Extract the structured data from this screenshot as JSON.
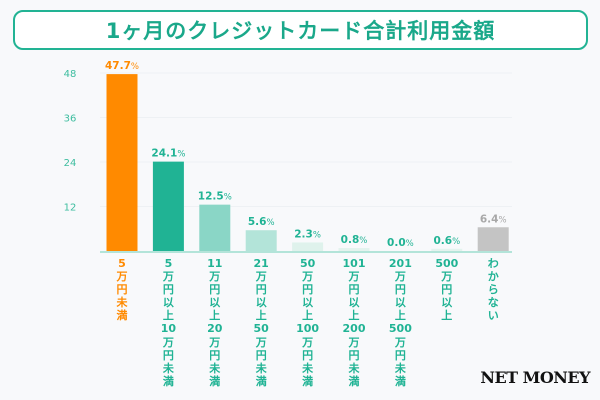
{
  "title": "1ヶ月のクレジットカード合計利用金額",
  "logo": "NET MONEY",
  "chart_data": {
    "type": "bar",
    "title": "1ヶ月のクレジットカード合計利用金額",
    "categories": [
      "5\n万\n円\n未\n満",
      "5\n万\n円\n以\n上\n10\n万\n円\n未\n満",
      "11\n万\n円\n以\n上\n20\n万\n円\n未\n満",
      "21\n万\n円\n以\n上\n50\n万\n円\n未\n満",
      "50\n万\n円\n以\n上\n100\n万\n円\n未\n満",
      "101\n万\n円\n以\n上\n200\n万\n円\n未\n満",
      "201\n万\n円\n以\n上\n500\n万\n円\n未\n満",
      "500\n万\n円\n以\n上",
      "わ\nか\nら\nな\nい"
    ],
    "values": [
      47.7,
      24.1,
      12.5,
      5.6,
      2.3,
      0.8,
      0.0,
      0.6,
      6.4
    ],
    "value_labels": [
      "47.7",
      "24.1",
      "12.5",
      "5.6",
      "2.3",
      "0.8",
      "0.0",
      "0.6",
      "6.4"
    ],
    "unit": "%",
    "ylim": [
      0,
      48
    ],
    "yticks": [
      12,
      24,
      36,
      48
    ],
    "grid": true,
    "colors": [
      "#ff8a00",
      "#20b394",
      "#8ad6c6",
      "#b3e4d9",
      "#dff2ec",
      "#e3f3ee",
      "#e3f3ee",
      "#e3f3ee",
      "#c4c4c4"
    ],
    "label_colors": [
      "#ff8a00",
      "#20b394",
      "#20b394",
      "#20b394",
      "#20b394",
      "#20b394",
      "#20b394",
      "#20b394",
      "#a8a8a8"
    ],
    "category_label_colors": [
      "#ff8a00",
      "#20b394",
      "#20b394",
      "#20b394",
      "#20b394",
      "#20b394",
      "#20b394",
      "#20b394",
      "#20b394"
    ]
  }
}
